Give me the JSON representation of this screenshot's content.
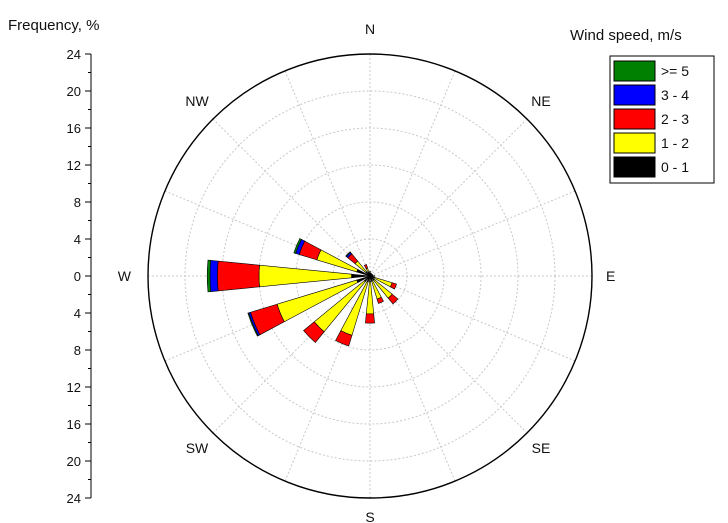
{
  "chart_data": {
    "type": "wind-rose",
    "title": "",
    "radial_axis_label": "Frequency, %",
    "radial_ticks": [
      "24",
      "20",
      "16",
      "12",
      "8",
      "4",
      "0",
      "4",
      "8",
      "12",
      "16",
      "20",
      "24"
    ],
    "rlim": [
      0,
      24
    ],
    "grid": true,
    "directions": [
      "N",
      "NE",
      "E",
      "SE",
      "S",
      "SW",
      "W",
      "NW"
    ],
    "sector_angles_deg": [
      0,
      22.5,
      45,
      67.5,
      90,
      112.5,
      135,
      157.5,
      180,
      202.5,
      225,
      247.5,
      270,
      292.5,
      315,
      337.5
    ],
    "legend": {
      "title": "Wind speed, m/s",
      "placement": "top-right",
      "entries": [
        {
          "label": ">= 5",
          "color": "#008000"
        },
        {
          "label": "3 - 4",
          "color": "#0000ff"
        },
        {
          "label": "2 - 3",
          "color": "#ff0000"
        },
        {
          "label": "1 - 2",
          "color": "#ffff00"
        },
        {
          "label": "0 - 1",
          "color": "#000000"
        }
      ]
    },
    "stack_order": [
      "0 - 1",
      "1 - 2",
      "2 - 3",
      "3 - 4",
      ">= 5"
    ],
    "series": [
      {
        "name": "0 - 1",
        "color": "#000000",
        "values": [
          0.5,
          0.3,
          0.3,
          0.3,
          0.5,
          0.5,
          0.6,
          0.6,
          0.6,
          0.7,
          0.8,
          1.5,
          2.0,
          1.5,
          0.6,
          0.4
        ]
      },
      {
        "name": "1 - 2",
        "color": "#ffff00",
        "values": [
          0,
          0,
          0,
          0,
          0,
          2.0,
          2.5,
          2.0,
          3.5,
          6.0,
          7.0,
          9.0,
          10.0,
          4.5,
          1.5,
          0.5
        ]
      },
      {
        "name": "2 - 3",
        "color": "#ff0000",
        "values": [
          0,
          0,
          0,
          0,
          0,
          0.5,
          0.8,
          0.5,
          1.0,
          1.2,
          1.5,
          3.0,
          4.5,
          2.0,
          1.0,
          0.4
        ]
      },
      {
        "name": "3 - 4",
        "color": "#0000ff",
        "values": [
          0,
          0,
          0,
          0,
          0,
          0,
          0,
          0,
          0,
          0,
          0,
          0.2,
          0.8,
          0.4,
          0.2,
          0
        ]
      },
      {
        "name": ">= 5",
        "color": "#008000",
        "values": [
          0,
          0,
          0,
          0,
          0,
          0,
          0,
          0,
          0,
          0,
          0,
          0.1,
          0.3,
          0.2,
          0.1,
          0
        ]
      }
    ]
  }
}
